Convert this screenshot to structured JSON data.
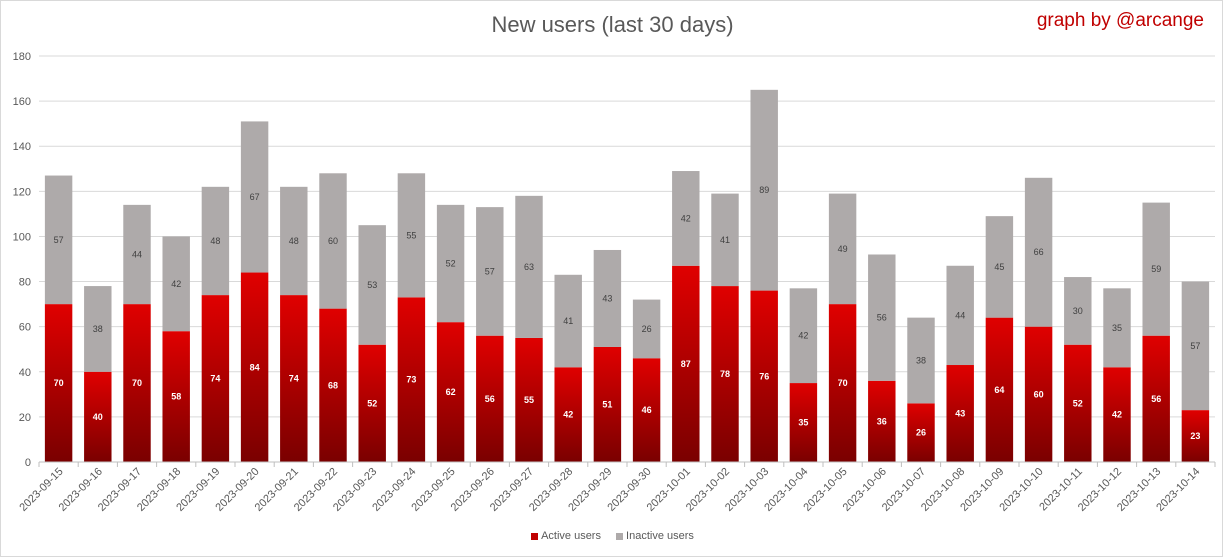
{
  "title": "New users (last 30 days)",
  "credit": "graph by @arcange",
  "colors": {
    "active": "#c00000",
    "active_dark": "#7a0000",
    "inactive": "#aeaaaa",
    "grid": "#d9d9d9"
  },
  "legend": {
    "active": "Active users",
    "inactive": "Inactive users"
  },
  "chart_data": {
    "type": "bar",
    "stacked": true,
    "title": "New users (last 30 days)",
    "ylim": [
      0,
      180
    ],
    "yticks": [
      0,
      20,
      40,
      60,
      80,
      100,
      120,
      140,
      160,
      180
    ],
    "grid": true,
    "legend_position": "bottom",
    "categories": [
      "2023-09-15",
      "2023-09-16",
      "2023-09-17",
      "2023-09-18",
      "2023-09-19",
      "2023-09-20",
      "2023-09-21",
      "2023-09-22",
      "2023-09-23",
      "2023-09-24",
      "2023-09-25",
      "2023-09-26",
      "2023-09-27",
      "2023-09-28",
      "2023-09-29",
      "2023-09-30",
      "2023-10-01",
      "2023-10-02",
      "2023-10-03",
      "2023-10-04",
      "2023-10-05",
      "2023-10-06",
      "2023-10-07",
      "2023-10-08",
      "2023-10-09",
      "2023-10-10",
      "2023-10-11",
      "2023-10-12",
      "2023-10-13",
      "2023-10-14"
    ],
    "series": [
      {
        "name": "Active users",
        "values": [
          70,
          40,
          70,
          58,
          74,
          84,
          74,
          68,
          52,
          73,
          62,
          56,
          55,
          42,
          51,
          46,
          87,
          78,
          76,
          35,
          70,
          36,
          26,
          43,
          64,
          60,
          52,
          42,
          56,
          23
        ]
      },
      {
        "name": "Inactive users",
        "values": [
          57,
          38,
          44,
          42,
          48,
          67,
          48,
          60,
          53,
          55,
          52,
          57,
          63,
          41,
          43,
          26,
          42,
          41,
          89,
          42,
          49,
          56,
          38,
          44,
          45,
          66,
          30,
          35,
          59,
          57
        ]
      }
    ]
  }
}
